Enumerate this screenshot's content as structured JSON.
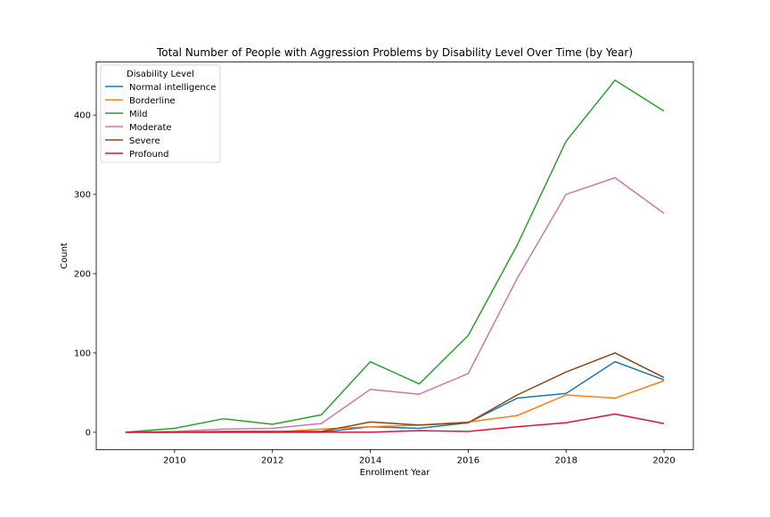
{
  "chart_data": {
    "type": "line",
    "title": "Total Number of People with Aggression Problems by Disability Level Over Time (by Year)",
    "xlabel": "Enrollment Year",
    "ylabel": "Count",
    "x": [
      2009,
      2010,
      2011,
      2012,
      2013,
      2014,
      2015,
      2016,
      2017,
      2018,
      2019,
      2020
    ],
    "xlim": [
      2008.4,
      2020.6
    ],
    "ylim": [
      -22,
      467
    ],
    "xticks": [
      2010,
      2012,
      2014,
      2016,
      2018,
      2020
    ],
    "yticks": [
      0,
      100,
      200,
      300,
      400
    ],
    "grid": false,
    "legend": {
      "title": "Disability Level",
      "position": "top-left"
    },
    "series": [
      {
        "name": "Normal intelligence",
        "color": "#1f77b4",
        "values": [
          0,
          0,
          0,
          0,
          0,
          7,
          5,
          12,
          43,
          49,
          89,
          66
        ]
      },
      {
        "name": "Borderline",
        "color": "#ff7f0e",
        "values": [
          0,
          0,
          0,
          0,
          4,
          7,
          9,
          13,
          21,
          47,
          43,
          65
        ]
      },
      {
        "name": "Mild",
        "color": "#2ca02c",
        "values": [
          0,
          5,
          17,
          10,
          22,
          89,
          61,
          122,
          236,
          367,
          444,
          405
        ]
      },
      {
        "name": "Moderate",
        "color": "#cc79a7",
        "values": [
          0,
          1,
          4,
          5,
          11,
          54,
          48,
          74,
          194,
          300,
          321,
          276
        ]
      },
      {
        "name": "Severe",
        "color": "#8b4513",
        "values": [
          0,
          0,
          1,
          1,
          1,
          13,
          9,
          12,
          47,
          76,
          100,
          69
        ]
      },
      {
        "name": "Profound",
        "color": "#dc143c",
        "values": [
          0,
          0,
          0,
          0,
          0,
          0,
          2,
          1,
          7,
          12,
          23,
          11
        ]
      }
    ]
  }
}
